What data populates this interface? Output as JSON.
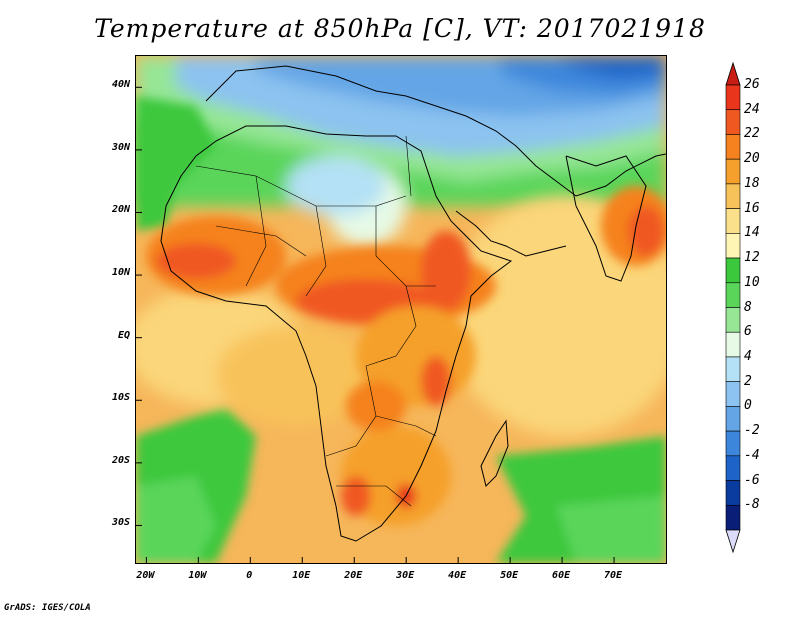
{
  "title": "Temperature at 850hPa [C], VT: 2017021918",
  "credit": "GrADS: IGES/COLA",
  "map": {
    "lon_range": [
      -22,
      80
    ],
    "lat_range": [
      -36,
      45
    ],
    "lat_ticks": [
      {
        "value": 40,
        "label": "40N"
      },
      {
        "value": 30,
        "label": "30N"
      },
      {
        "value": 20,
        "label": "20N"
      },
      {
        "value": 10,
        "label": "10N"
      },
      {
        "value": 0,
        "label": "EQ"
      },
      {
        "value": -10,
        "label": "10S"
      },
      {
        "value": -20,
        "label": "20S"
      },
      {
        "value": -30,
        "label": "30S"
      }
    ],
    "lon_ticks": [
      {
        "value": -20,
        "label": "20W"
      },
      {
        "value": -10,
        "label": "10W"
      },
      {
        "value": 0,
        "label": "0"
      },
      {
        "value": 10,
        "label": "10E"
      },
      {
        "value": 20,
        "label": "20E"
      },
      {
        "value": 30,
        "label": "30E"
      },
      {
        "value": 40,
        "label": "40E"
      },
      {
        "value": 50,
        "label": "50E"
      },
      {
        "value": 60,
        "label": "60E"
      },
      {
        "value": 70,
        "label": "70E"
      }
    ]
  },
  "colorbar": {
    "labels": [
      "26",
      "24",
      "22",
      "20",
      "18",
      "16",
      "14",
      "12",
      "10",
      "8",
      "6",
      "4",
      "2",
      "0",
      "-2",
      "-4",
      "-6",
      "-8"
    ],
    "colors": [
      "#e8351b",
      "#f05822",
      "#f5821f",
      "#f5a02c",
      "#f8c25a",
      "#fbe08c",
      "#fef5b4",
      "#3cc83c",
      "#5ad55a",
      "#96e696",
      "#e6fae6",
      "#b4e1f5",
      "#8cc3f0",
      "#64a5e6",
      "#3c87dc",
      "#1e64c8",
      "#0a3ca0",
      "#0a1e78"
    ],
    "over_color": "#c81e14",
    "under_color": "#dcdcfa"
  }
}
